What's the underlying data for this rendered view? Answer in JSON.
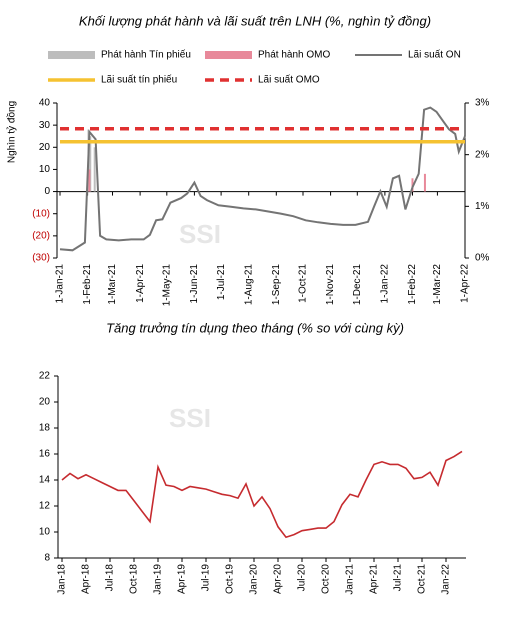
{
  "chart_data": [
    {
      "type": "combo",
      "title": "Khối lượng phát hành và lãi suất trên LNH (%, nghìn tỷ đồng)",
      "y_label": "Nghìn tỷ đồng",
      "watermark": "SSI",
      "xlim": [
        "1-Jan-21",
        "1-Apr-22"
      ],
      "xticks": [
        "1-Jan-21",
        "1-Feb-21",
        "1-Mar-21",
        "1-Apr-21",
        "1-May-21",
        "1-Jun-21",
        "1-Jul-21",
        "1-Aug-21",
        "1-Sep-21",
        "1-Oct-21",
        "1-Nov-21",
        "1-Dec-21",
        "1-Jan-22",
        "1-Feb-22",
        "1-Mar-22",
        "1-Apr-22"
      ],
      "ylim": [
        -30,
        40
      ],
      "yticks": [
        40,
        30,
        20,
        10,
        0,
        {
          "value": -10,
          "label": "(10)"
        },
        {
          "value": -20,
          "label": "(20)"
        },
        {
          "value": -30,
          "label": "(30)"
        }
      ],
      "negative_tick_color": "#c00000",
      "y2lim": [
        0,
        3
      ],
      "y2ticks": [
        {
          "value": 3,
          "label": "3%"
        },
        {
          "value": 2,
          "label": "2%"
        },
        {
          "value": 1,
          "label": "1%"
        },
        {
          "value": 0,
          "label": "0%"
        }
      ],
      "series": [
        {
          "name": "Phát hành Tín phiếu",
          "type": "bar",
          "color": "#bdbdbd",
          "x": [
            "2-Feb-21",
            "4-Feb-21",
            "9-Feb-21"
          ],
          "values": [
            28,
            25,
            20
          ]
        },
        {
          "name": "Phát hành OMO",
          "type": "bar",
          "color": "#e8899a",
          "x": [
            "3-Feb-21",
            "1-Feb-22",
            "15-Feb-22"
          ],
          "values": [
            10,
            6,
            8
          ]
        },
        {
          "name": "Lãi suất ON",
          "type": "line",
          "axis": "y2",
          "color": "#747474",
          "x": [
            "1-Jan-21",
            "15-Jan-21",
            "29-Jan-21",
            "3-Feb-21",
            "10-Feb-21",
            "15-Feb-21",
            "22-Feb-21",
            "8-Mar-21",
            "22-Mar-21",
            "5-Apr-21",
            "12-Apr-21",
            "19-Apr-21",
            "26-Apr-21",
            "5-May-21",
            "17-May-21",
            "24-May-21",
            "1-Jun-21",
            "8-Jun-21",
            "15-Jun-21",
            "28-Jun-21",
            "12-Jul-21",
            "26-Jul-21",
            "9-Aug-21",
            "23-Aug-21",
            "6-Sep-21",
            "20-Sep-21",
            "4-Oct-21",
            "18-Oct-21",
            "1-Nov-21",
            "15-Nov-21",
            "29-Nov-21",
            "13-Dec-21",
            "20-Dec-21",
            "27-Dec-21",
            "3-Jan-22",
            "10-Jan-22",
            "17-Jan-22",
            "24-Jan-22",
            "1-Feb-22",
            "8-Feb-22",
            "14-Feb-22",
            "21-Feb-22",
            "28-Feb-22",
            "7-Mar-22",
            "14-Mar-22",
            "21-Mar-22",
            "25-Mar-22",
            "1-Apr-22"
          ],
          "values": [
            0.17,
            0.15,
            0.3,
            2.44,
            2.3,
            0.43,
            0.36,
            0.34,
            0.36,
            0.36,
            0.45,
            0.73,
            0.75,
            1.07,
            1.16,
            1.25,
            1.46,
            1.2,
            1.12,
            1.02,
            0.99,
            0.96,
            0.94,
            0.9,
            0.86,
            0.81,
            0.73,
            0.69,
            0.66,
            0.64,
            0.64,
            0.7,
            1.0,
            1.29,
            0.99,
            1.54,
            1.59,
            0.94,
            1.37,
            1.63,
            2.87,
            2.91,
            2.83,
            2.66,
            2.49,
            2.4,
            2.06,
            2.36
          ]
        },
        {
          "name": "Lãi suất tín phiếu",
          "type": "line",
          "axis": "y2",
          "color": "#f5c231",
          "x": [
            "1-Jan-21",
            "1-Apr-22"
          ],
          "values": [
            2.25,
            2.25
          ]
        },
        {
          "name": "Lãi suất OMO",
          "type": "line",
          "axis": "y2",
          "dash": true,
          "color": "#e03131",
          "x": [
            "1-Jan-21",
            "1-Apr-22"
          ],
          "values": [
            2.5,
            2.5
          ]
        }
      ]
    },
    {
      "type": "line",
      "title": "Tăng trưởng tín dụng theo tháng (% so với cùng kỳ)",
      "watermark": "SSI",
      "categories": [
        "Jan-18",
        null,
        null,
        "Apr-18",
        null,
        null,
        "Jul-18",
        null,
        null,
        "Oct-18",
        null,
        null,
        "Jan-19",
        null,
        null,
        "Apr-19",
        null,
        null,
        "Jul-19",
        null,
        null,
        "Oct-19",
        null,
        null,
        "Jan-20",
        null,
        null,
        "Apr-20",
        null,
        null,
        "Jul-20",
        null,
        null,
        "Oct-20",
        null,
        null,
        "Jan-21",
        null,
        null,
        "Apr-21",
        null,
        null,
        "Jul-21",
        null,
        null,
        "Oct-21",
        null,
        null,
        "Jan-22",
        null,
        null
      ],
      "ylim": [
        8,
        22
      ],
      "yticks": [
        8,
        10,
        12,
        14,
        16,
        18,
        20,
        22
      ],
      "series": [
        {
          "name": "Tăng trưởng tín dụng",
          "color": "#c62b2f",
          "values": [
            14.0,
            14.5,
            14.1,
            14.4,
            14.1,
            13.8,
            13.5,
            13.2,
            13.2,
            12.4,
            11.6,
            10.8,
            15.0,
            13.6,
            13.5,
            13.2,
            13.5,
            13.4,
            13.3,
            13.1,
            12.9,
            12.8,
            12.6,
            13.7,
            12.0,
            12.7,
            11.8,
            10.4,
            9.6,
            9.8,
            10.1,
            10.2,
            10.3,
            10.3,
            10.8,
            12.1,
            12.9,
            12.7,
            14.0,
            15.2,
            15.4,
            15.2,
            15.2,
            14.9,
            14.1,
            14.2,
            14.6,
            13.6,
            15.5,
            15.8,
            16.2
          ]
        }
      ]
    }
  ]
}
